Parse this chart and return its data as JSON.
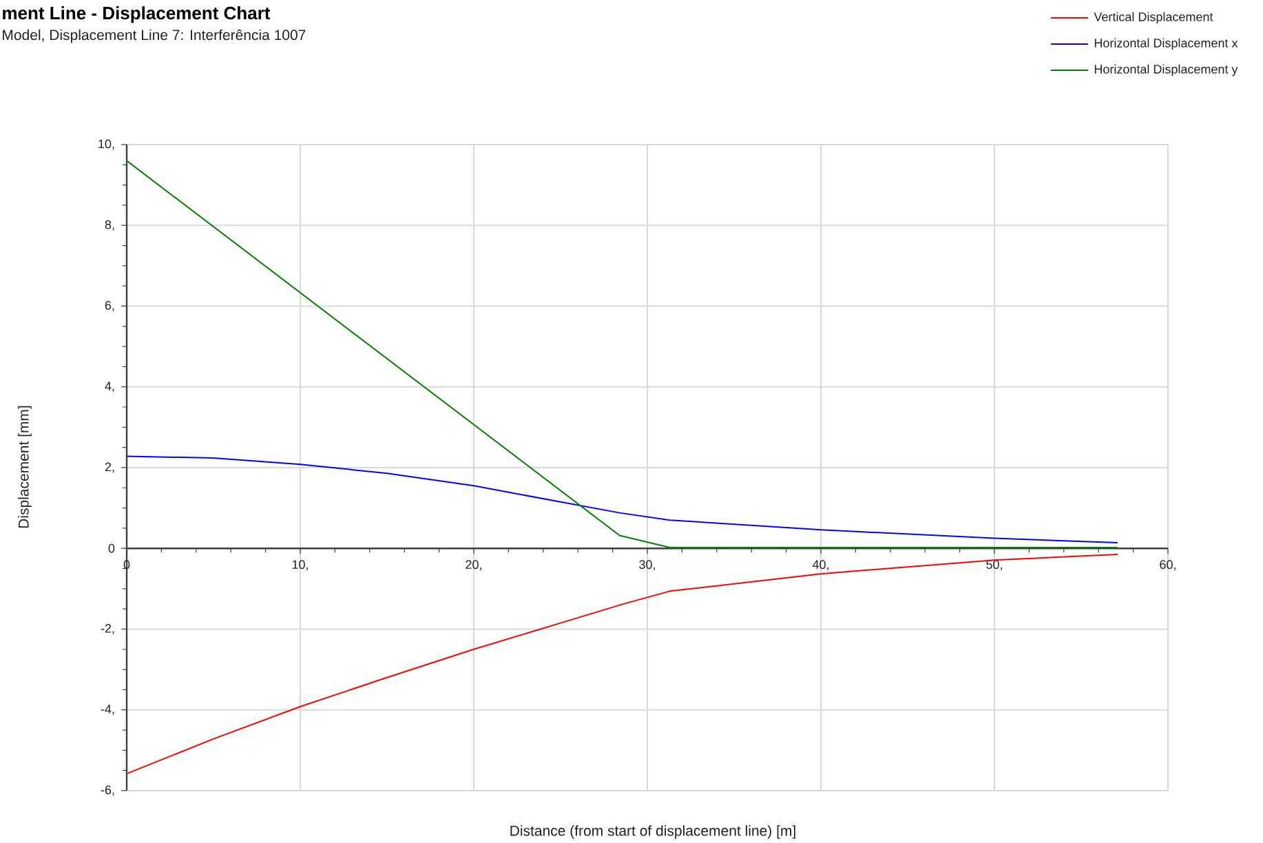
{
  "chart_data": {
    "type": "line",
    "title": "ment Line - Displacement Chart",
    "subtitle": "Model, Displacement Line 7: Interferência 1007",
    "xlabel": "Distance (from start of displacement line) [m]",
    "ylabel": "Displacement [mm]",
    "series": [
      {
        "name": "Vertical Displacement",
        "color": "#ff0000",
        "x": [
          0,
          5,
          10,
          15,
          20,
          25,
          28.6,
          31.3,
          40,
          50,
          57.1
        ],
        "values": [
          -5.58,
          -4.72,
          -3.92,
          -3.2,
          -2.5,
          -1.85,
          -1.38,
          -1.06,
          -0.63,
          -0.29,
          -0.15
        ]
      },
      {
        "name": "Horizontal Displacement x",
        "color": "#0000ff",
        "x": [
          0,
          5,
          10,
          15,
          20,
          25,
          28.4,
          31.3,
          40,
          50,
          57.1
        ],
        "values": [
          2.28,
          2.24,
          2.08,
          1.86,
          1.55,
          1.15,
          0.88,
          0.7,
          0.46,
          0.25,
          0.14
        ]
      },
      {
        "name": "Horizontal Displacement y",
        "color": "#008000",
        "x": [
          0,
          28.4,
          31.3,
          57.1
        ],
        "values": [
          9.6,
          0.32,
          0.02,
          0.02
        ]
      }
    ],
    "xlim": [
      0,
      60
    ],
    "ylim": [
      -6,
      10
    ],
    "xticks": [
      0,
      {
        "value": 2,
        "label": null
      },
      {
        "value": 4,
        "label": null
      },
      {
        "value": 6,
        "label": null
      },
      {
        "value": 8,
        "label": null
      },
      {
        "value": 10,
        "label": "10,"
      },
      {
        "value": 12,
        "label": null
      },
      {
        "value": 14,
        "label": null
      },
      {
        "value": 16,
        "label": null
      },
      {
        "value": 18,
        "label": null
      },
      {
        "value": 20,
        "label": "20,"
      },
      {
        "value": 22,
        "label": null
      },
      {
        "value": 24,
        "label": null
      },
      {
        "value": 26,
        "label": null
      },
      {
        "value": 28,
        "label": null
      },
      {
        "value": 30,
        "label": "30,"
      },
      {
        "value": 32,
        "label": null
      },
      {
        "value": 34,
        "label": null
      },
      {
        "value": 36,
        "label": null
      },
      {
        "value": 38,
        "label": null
      },
      {
        "value": 40,
        "label": "40,"
      },
      {
        "value": 42,
        "label": null
      },
      {
        "value": 44,
        "label": null
      },
      {
        "value": 46,
        "label": null
      },
      {
        "value": 48,
        "label": null
      },
      {
        "value": 50,
        "label": "50,"
      },
      {
        "value": 52,
        "label": null
      },
      {
        "value": 54,
        "label": null
      },
      {
        "value": 56,
        "label": null
      },
      {
        "value": 58,
        "label": null
      },
      {
        "value": 60,
        "label": "60,"
      }
    ],
    "yticks": [
      {
        "value": -6,
        "label": "-6,"
      },
      {
        "value": -5.5,
        "label": null
      },
      {
        "value": -5,
        "label": null
      },
      {
        "value": -4.5,
        "label": null
      },
      {
        "value": -4,
        "label": "-4,"
      },
      {
        "value": -3.5,
        "label": null
      },
      {
        "value": -3,
        "label": null
      },
      {
        "value": -2.5,
        "label": null
      },
      {
        "value": -2,
        "label": "-2,"
      },
      {
        "value": -1.5,
        "label": null
      },
      {
        "value": -1,
        "label": null
      },
      {
        "value": -0.5,
        "label": null
      },
      0,
      {
        "value": 0.5,
        "label": null
      },
      {
        "value": 1,
        "label": null
      },
      {
        "value": 1.5,
        "label": null
      },
      {
        "value": 2,
        "label": "2,"
      },
      {
        "value": 2.5,
        "label": null
      },
      {
        "value": 3,
        "label": null
      },
      {
        "value": 3.5,
        "label": null
      },
      {
        "value": 4,
        "label": "4,"
      },
      {
        "value": 4.5,
        "label": null
      },
      {
        "value": 5,
        "label": null
      },
      {
        "value": 5.5,
        "label": null
      },
      {
        "value": 6,
        "label": "6,"
      },
      {
        "value": 6.5,
        "label": null
      },
      {
        "value": 7,
        "label": null
      },
      {
        "value": 7.5,
        "label": null
      },
      {
        "value": 8,
        "label": "8,"
      },
      {
        "value": 8.5,
        "label": null
      },
      {
        "value": 9,
        "label": null
      },
      {
        "value": 9.5,
        "label": null
      },
      {
        "value": 10,
        "label": "10,"
      }
    ],
    "grid": true,
    "legend": "top right",
    "marker": "none",
    "line_style": "solid"
  }
}
